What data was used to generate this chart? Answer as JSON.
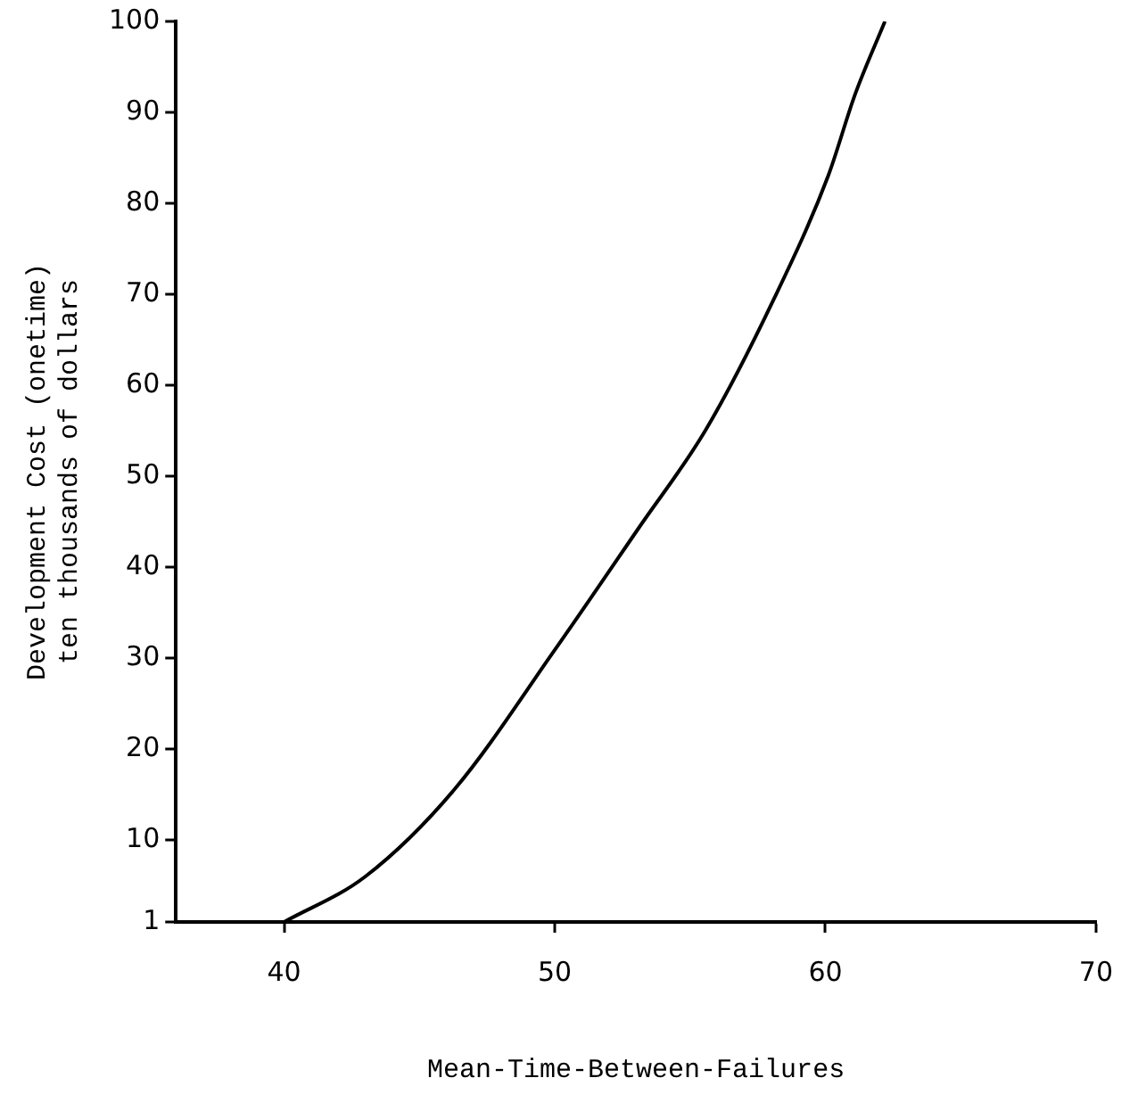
{
  "chart_data": {
    "type": "line",
    "xlabel": "Mean-Time-Between-Failures",
    "ylabel": "Development Cost (onetime)\nten thousands of dollars",
    "x": [
      40,
      43,
      46.3,
      50,
      53.1,
      55.6,
      58.1,
      60.1,
      61.1,
      62.2
    ],
    "series": [
      {
        "color": "#000000",
        "values": [
          1,
          6,
          15.6,
          30.9,
          44.3,
          55.2,
          69.5,
          83,
          92,
          100
        ]
      }
    ],
    "xlim": [
      36,
      70
    ],
    "xticks": [
      40,
      50,
      60,
      70
    ],
    "ylim": [
      1,
      100
    ],
    "yticks": [
      1,
      10,
      20,
      30,
      40,
      50,
      60,
      70,
      80,
      90,
      100
    ],
    "grid": false,
    "legend": false,
    "marker": "none",
    "line_style": "solid"
  }
}
